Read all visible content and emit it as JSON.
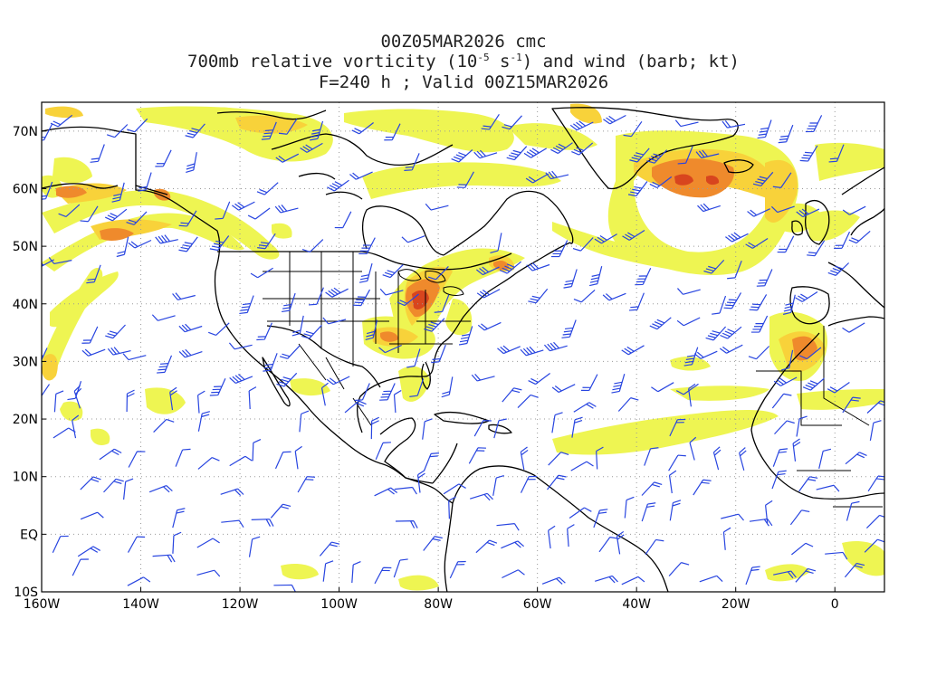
{
  "title": {
    "line1": "00Z05MAR2026 cmc",
    "line2_pre": "700mb relative vorticity (10",
    "line2_exp1": "-5",
    "line2_mid": " s",
    "line2_exp2": "-1",
    "line2_post": ") and wind (barb; kt)",
    "line3": "F=240 h ; Valid 00Z15MAR2026"
  },
  "map": {
    "lon_range": [
      -160,
      10
    ],
    "lat_range": [
      -10,
      75
    ],
    "lat_ticks": [
      {
        "value": 70,
        "label": "70N"
      },
      {
        "value": 60,
        "label": "60N"
      },
      {
        "value": 50,
        "label": "50N"
      },
      {
        "value": 40,
        "label": "40N"
      },
      {
        "value": 30,
        "label": "30N"
      },
      {
        "value": 20,
        "label": "20N"
      },
      {
        "value": 10,
        "label": "10N"
      },
      {
        "value": 0,
        "label": "EQ"
      },
      {
        "value": -10,
        "label": "10S"
      }
    ],
    "lon_ticks": [
      {
        "value": -160,
        "label": "160W"
      },
      {
        "value": -140,
        "label": "140W"
      },
      {
        "value": -120,
        "label": "120W"
      },
      {
        "value": -100,
        "label": "100W"
      },
      {
        "value": -80,
        "label": "80W"
      },
      {
        "value": -60,
        "label": "60W"
      },
      {
        "value": -40,
        "label": "40W"
      },
      {
        "value": -20,
        "label": "20W"
      },
      {
        "value": 0,
        "label": "0"
      }
    ],
    "grid": "dotted",
    "colors": {
      "vort_low": "#eef552",
      "vort_mid": "#f8d23a",
      "vort_high": "#ef8a2c",
      "vort_max": "#d8451e",
      "barbs": "#2845e0",
      "coast": "#000000",
      "grid": "#9a9a9a"
    }
  }
}
